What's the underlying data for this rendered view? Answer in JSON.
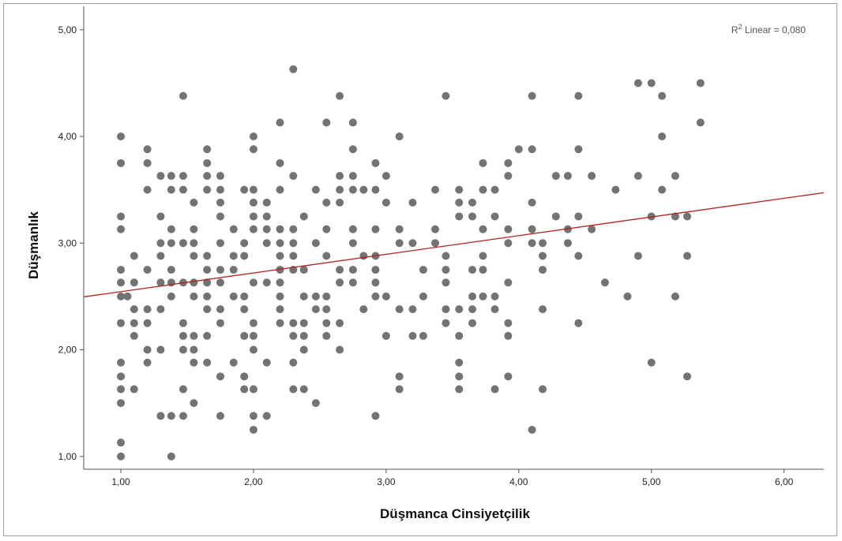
{
  "chart_data": {
    "type": "scatter",
    "xlabel": "Düşmanca Cinsiyetçilik",
    "ylabel": "Düşmanlık",
    "xlim": [
      0.72,
      6.3
    ],
    "ylim": [
      0.88,
      5.22
    ],
    "x_ticks": [
      1,
      2,
      3,
      4,
      5,
      6
    ],
    "x_tick_labels": [
      "1,00",
      "2,00",
      "3,00",
      "4,00",
      "5,00",
      "6,00"
    ],
    "y_ticks": [
      1,
      2,
      3,
      4,
      5
    ],
    "y_tick_labels": [
      "1,00",
      "2,00",
      "3,00",
      "4,00",
      "5,00"
    ],
    "r2_label": {
      "r": "R",
      "sup": "2",
      "rest": " Linear = 0,080"
    },
    "fit_line": {
      "intercept": 2.37,
      "slope": 0.175
    },
    "grid": false,
    "colors": {
      "points": "#737373",
      "fit_line": "#b22222",
      "axis": "#555555"
    },
    "points": [
      [
        1,
        1
      ],
      [
        1,
        1.13
      ],
      [
        1,
        1.5
      ],
      [
        1,
        1.63
      ],
      [
        1,
        1.75
      ],
      [
        1,
        1.88
      ],
      [
        1,
        2.25
      ],
      [
        1,
        2.5
      ],
      [
        1,
        2.63
      ],
      [
        1,
        2.75
      ],
      [
        1,
        3.13
      ],
      [
        1,
        3.25
      ],
      [
        1,
        3.75
      ],
      [
        1,
        4
      ],
      [
        1.05,
        2.5
      ],
      [
        1.1,
        1.63
      ],
      [
        1.1,
        2.13
      ],
      [
        1.1,
        2.25
      ],
      [
        1.1,
        2.38
      ],
      [
        1.1,
        2.63
      ],
      [
        1.1,
        2.88
      ],
      [
        1.2,
        1.88
      ],
      [
        1.2,
        2
      ],
      [
        1.2,
        2.25
      ],
      [
        1.2,
        2.38
      ],
      [
        1.2,
        2.75
      ],
      [
        1.2,
        3.5
      ],
      [
        1.2,
        3.75
      ],
      [
        1.2,
        3.88
      ],
      [
        1.3,
        1.38
      ],
      [
        1.3,
        2
      ],
      [
        1.3,
        2.38
      ],
      [
        1.3,
        2.63
      ],
      [
        1.3,
        2.88
      ],
      [
        1.3,
        3
      ],
      [
        1.3,
        3.25
      ],
      [
        1.3,
        3.63
      ],
      [
        1.38,
        1
      ],
      [
        1.38,
        1.38
      ],
      [
        1.38,
        2.5
      ],
      [
        1.38,
        2.63
      ],
      [
        1.38,
        2.75
      ],
      [
        1.38,
        3
      ],
      [
        1.38,
        3.13
      ],
      [
        1.38,
        3.5
      ],
      [
        1.38,
        3.63
      ],
      [
        1.47,
        1.38
      ],
      [
        1.47,
        1.63
      ],
      [
        1.47,
        2
      ],
      [
        1.47,
        2.13
      ],
      [
        1.47,
        2.25
      ],
      [
        1.47,
        2.63
      ],
      [
        1.47,
        3
      ],
      [
        1.47,
        3.5
      ],
      [
        1.47,
        3.63
      ],
      [
        1.47,
        4.38
      ],
      [
        1.55,
        1.5
      ],
      [
        1.55,
        1.88
      ],
      [
        1.55,
        2
      ],
      [
        1.55,
        2.13
      ],
      [
        1.55,
        2.5
      ],
      [
        1.55,
        2.63
      ],
      [
        1.55,
        2.88
      ],
      [
        1.55,
        3
      ],
      [
        1.55,
        3.13
      ],
      [
        1.55,
        3.38
      ],
      [
        1.65,
        1.88
      ],
      [
        1.65,
        2.13
      ],
      [
        1.65,
        2.38
      ],
      [
        1.65,
        2.5
      ],
      [
        1.65,
        2.63
      ],
      [
        1.65,
        2.75
      ],
      [
        1.65,
        2.88
      ],
      [
        1.65,
        3.5
      ],
      [
        1.65,
        3.63
      ],
      [
        1.65,
        3.75
      ],
      [
        1.65,
        3.88
      ],
      [
        1.75,
        1.38
      ],
      [
        1.75,
        1.75
      ],
      [
        1.75,
        2.25
      ],
      [
        1.75,
        2.38
      ],
      [
        1.75,
        2.63
      ],
      [
        1.75,
        2.75
      ],
      [
        1.75,
        3
      ],
      [
        1.75,
        3.25
      ],
      [
        1.75,
        3.38
      ],
      [
        1.75,
        3.5
      ],
      [
        1.75,
        3.63
      ],
      [
        1.85,
        1.88
      ],
      [
        1.85,
        2.5
      ],
      [
        1.85,
        2.75
      ],
      [
        1.85,
        2.88
      ],
      [
        1.85,
        3.13
      ],
      [
        1.93,
        1.63
      ],
      [
        1.93,
        1.75
      ],
      [
        1.93,
        2.13
      ],
      [
        1.93,
        2.38
      ],
      [
        1.93,
        2.5
      ],
      [
        1.93,
        2.88
      ],
      [
        1.93,
        3
      ],
      [
        1.93,
        3.5
      ],
      [
        2,
        1.25
      ],
      [
        2,
        1.38
      ],
      [
        2,
        1.63
      ],
      [
        2,
        2
      ],
      [
        2,
        2.13
      ],
      [
        2,
        2.25
      ],
      [
        2,
        2.63
      ],
      [
        2,
        3.13
      ],
      [
        2,
        3.25
      ],
      [
        2,
        3.38
      ],
      [
        2,
        3.5
      ],
      [
        2,
        3.88
      ],
      [
        2,
        4
      ],
      [
        2.1,
        1.38
      ],
      [
        2.1,
        1.88
      ],
      [
        2.1,
        2.63
      ],
      [
        2.1,
        3
      ],
      [
        2.1,
        3.13
      ],
      [
        2.1,
        3.25
      ],
      [
        2.1,
        3.38
      ],
      [
        2.2,
        2.25
      ],
      [
        2.2,
        2.38
      ],
      [
        2.2,
        2.5
      ],
      [
        2.2,
        2.63
      ],
      [
        2.2,
        2.75
      ],
      [
        2.2,
        2.88
      ],
      [
        2.2,
        3
      ],
      [
        2.2,
        3.13
      ],
      [
        2.2,
        3.5
      ],
      [
        2.2,
        3.75
      ],
      [
        2.2,
        4.13
      ],
      [
        2.3,
        1.63
      ],
      [
        2.3,
        1.88
      ],
      [
        2.3,
        2.13
      ],
      [
        2.3,
        2.25
      ],
      [
        2.3,
        2.75
      ],
      [
        2.3,
        2.88
      ],
      [
        2.3,
        3
      ],
      [
        2.3,
        3.13
      ],
      [
        2.3,
        3.63
      ],
      [
        2.3,
        4.63
      ],
      [
        2.38,
        1.63
      ],
      [
        2.38,
        2
      ],
      [
        2.38,
        2.13
      ],
      [
        2.38,
        2.25
      ],
      [
        2.38,
        2.5
      ],
      [
        2.38,
        2.75
      ],
      [
        2.38,
        3.25
      ],
      [
        2.47,
        1.5
      ],
      [
        2.47,
        2.38
      ],
      [
        2.47,
        2.5
      ],
      [
        2.47,
        3
      ],
      [
        2.47,
        3.5
      ],
      [
        2.55,
        2.13
      ],
      [
        2.55,
        2.25
      ],
      [
        2.55,
        2.38
      ],
      [
        2.55,
        2.5
      ],
      [
        2.55,
        2.88
      ],
      [
        2.55,
        3.13
      ],
      [
        2.55,
        3.38
      ],
      [
        2.55,
        4.13
      ],
      [
        2.65,
        2
      ],
      [
        2.65,
        2.25
      ],
      [
        2.65,
        2.63
      ],
      [
        2.65,
        2.75
      ],
      [
        2.65,
        3.38
      ],
      [
        2.65,
        3.5
      ],
      [
        2.65,
        3.63
      ],
      [
        2.65,
        4.38
      ],
      [
        2.75,
        2.63
      ],
      [
        2.75,
        2.75
      ],
      [
        2.75,
        3
      ],
      [
        2.75,
        3.13
      ],
      [
        2.75,
        3.5
      ],
      [
        2.75,
        3.63
      ],
      [
        2.75,
        3.88
      ],
      [
        2.75,
        4.13
      ],
      [
        2.83,
        2.38
      ],
      [
        2.83,
        2.88
      ],
      [
        2.83,
        3.5
      ],
      [
        2.92,
        1.38
      ],
      [
        2.92,
        2.5
      ],
      [
        2.92,
        2.63
      ],
      [
        2.92,
        2.75
      ],
      [
        2.92,
        2.88
      ],
      [
        2.92,
        3.13
      ],
      [
        2.92,
        3.5
      ],
      [
        2.92,
        3.75
      ],
      [
        3,
        2.13
      ],
      [
        3,
        2.5
      ],
      [
        3,
        3.38
      ],
      [
        3,
        3.63
      ],
      [
        3.1,
        1.63
      ],
      [
        3.1,
        1.75
      ],
      [
        3.1,
        2.38
      ],
      [
        3.1,
        3
      ],
      [
        3.1,
        3.13
      ],
      [
        3.1,
        4
      ],
      [
        3.2,
        2.13
      ],
      [
        3.2,
        2.38
      ],
      [
        3.2,
        3
      ],
      [
        3.2,
        3.38
      ],
      [
        3.28,
        2.13
      ],
      [
        3.28,
        2.5
      ],
      [
        3.28,
        2.75
      ],
      [
        3.37,
        3
      ],
      [
        3.37,
        3.13
      ],
      [
        3.37,
        3.5
      ],
      [
        3.45,
        2.25
      ],
      [
        3.45,
        2.38
      ],
      [
        3.45,
        2.63
      ],
      [
        3.45,
        2.75
      ],
      [
        3.45,
        2.88
      ],
      [
        3.45,
        4.38
      ],
      [
        3.55,
        1.63
      ],
      [
        3.55,
        1.75
      ],
      [
        3.55,
        1.88
      ],
      [
        3.55,
        2.13
      ],
      [
        3.55,
        2.38
      ],
      [
        3.55,
        3.25
      ],
      [
        3.55,
        3.38
      ],
      [
        3.55,
        3.5
      ],
      [
        3.65,
        2.25
      ],
      [
        3.65,
        2.38
      ],
      [
        3.65,
        2.5
      ],
      [
        3.65,
        2.75
      ],
      [
        3.65,
        3.25
      ],
      [
        3.65,
        3.38
      ],
      [
        3.73,
        2.5
      ],
      [
        3.73,
        2.75
      ],
      [
        3.73,
        2.88
      ],
      [
        3.73,
        3.13
      ],
      [
        3.73,
        3.5
      ],
      [
        3.73,
        3.75
      ],
      [
        3.82,
        1.63
      ],
      [
        3.82,
        2.38
      ],
      [
        3.82,
        2.5
      ],
      [
        3.82,
        3.25
      ],
      [
        3.82,
        3.5
      ],
      [
        3.92,
        1.75
      ],
      [
        3.92,
        2.13
      ],
      [
        3.92,
        2.25
      ],
      [
        3.92,
        2.63
      ],
      [
        3.92,
        3
      ],
      [
        3.92,
        3.13
      ],
      [
        3.92,
        3.63
      ],
      [
        3.92,
        3.75
      ],
      [
        4,
        3.88
      ],
      [
        4.1,
        1.25
      ],
      [
        4.1,
        3
      ],
      [
        4.1,
        3.13
      ],
      [
        4.1,
        3.38
      ],
      [
        4.1,
        3.88
      ],
      [
        4.1,
        4.38
      ],
      [
        4.18,
        1.63
      ],
      [
        4.18,
        2.38
      ],
      [
        4.18,
        2.75
      ],
      [
        4.18,
        2.88
      ],
      [
        4.18,
        3
      ],
      [
        4.28,
        3.25
      ],
      [
        4.28,
        3.63
      ],
      [
        4.37,
        3
      ],
      [
        4.37,
        3.13
      ],
      [
        4.37,
        3.63
      ],
      [
        4.45,
        2.25
      ],
      [
        4.45,
        2.88
      ],
      [
        4.45,
        3.25
      ],
      [
        4.45,
        3.88
      ],
      [
        4.45,
        4.38
      ],
      [
        4.55,
        3.13
      ],
      [
        4.55,
        3.63
      ],
      [
        4.65,
        2.63
      ],
      [
        4.73,
        3.5
      ],
      [
        4.82,
        2.5
      ],
      [
        4.9,
        2.88
      ],
      [
        4.9,
        3.63
      ],
      [
        4.9,
        4.5
      ],
      [
        5,
        1.88
      ],
      [
        5,
        3.25
      ],
      [
        5,
        4.5
      ],
      [
        5.08,
        3.5
      ],
      [
        5.08,
        4
      ],
      [
        5.08,
        4.38
      ],
      [
        5.18,
        2.5
      ],
      [
        5.18,
        3.25
      ],
      [
        5.18,
        3.63
      ],
      [
        5.27,
        1.75
      ],
      [
        5.27,
        2.88
      ],
      [
        5.27,
        3.25
      ],
      [
        5.37,
        4.13
      ],
      [
        5.37,
        4.5
      ]
    ]
  }
}
